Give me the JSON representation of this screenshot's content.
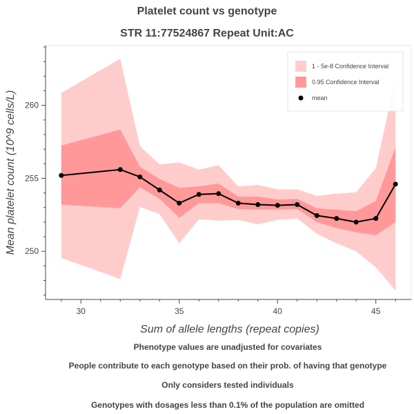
{
  "chart_data": {
    "type": "line",
    "title": "Platelet count vs genotype",
    "subtitle": "STR 11:77524867 Repeat Unit:AC",
    "xlabel": "Sum of allele lengths (repeat copies)",
    "ylabel": "Mean platelet count (10^9 cells/L)",
    "xlim": [
      28.2,
      46.8
    ],
    "ylim": [
      246.7,
      264.1
    ],
    "xticks": [
      30,
      35,
      40,
      45
    ],
    "yticks": [
      250,
      255,
      260
    ],
    "grid": false,
    "legend_position": "top-right",
    "x": [
      29,
      32,
      33,
      34,
      35,
      36,
      37,
      38,
      39,
      40,
      41,
      42,
      43,
      44,
      45,
      46
    ],
    "series": [
      {
        "name": "mean",
        "values": [
          255.2,
          255.6,
          255.1,
          254.2,
          253.3,
          253.9,
          253.95,
          253.3,
          253.2,
          253.15,
          253.2,
          252.45,
          252.25,
          252.0,
          252.25,
          254.6
        ]
      },
      {
        "name": "0.95 Confidence Interval",
        "lower": [
          253.2,
          252.95,
          254.4,
          253.6,
          252.3,
          253.3,
          253.3,
          252.9,
          252.85,
          252.85,
          252.9,
          252.0,
          251.6,
          251.3,
          251.1,
          252.0
        ],
        "upper": [
          257.25,
          258.35,
          255.8,
          254.95,
          254.35,
          254.45,
          254.65,
          253.75,
          253.75,
          253.55,
          253.6,
          252.95,
          252.85,
          252.75,
          253.45,
          257.15
        ]
      },
      {
        "name": "1 - 5e-8 Confidence Interval",
        "lower": [
          249.55,
          248.1,
          253.05,
          252.55,
          250.55,
          252.2,
          252.1,
          252.15,
          251.85,
          252.15,
          252.25,
          251.2,
          250.55,
          250.0,
          248.9,
          247.3
        ],
        "upper": [
          260.85,
          263.2,
          257.2,
          255.95,
          256.1,
          255.6,
          255.9,
          254.45,
          254.55,
          254.25,
          254.25,
          253.8,
          253.95,
          254.05,
          255.7,
          261.85
        ]
      }
    ],
    "colors": {
      "ci_wide": "#ffcccc",
      "ci_narrow": "#ff9999",
      "mean": "#000000",
      "axis": "#444444",
      "frame": "#e5e5e5"
    }
  },
  "notes": [
    "Phenotype values are unadjusted for covariates",
    "People contribute to each genotype based on their prob. of having that genotype",
    "Only considers tested individuals",
    "Genotypes with dosages less than 0.1% of the population are omitted"
  ]
}
